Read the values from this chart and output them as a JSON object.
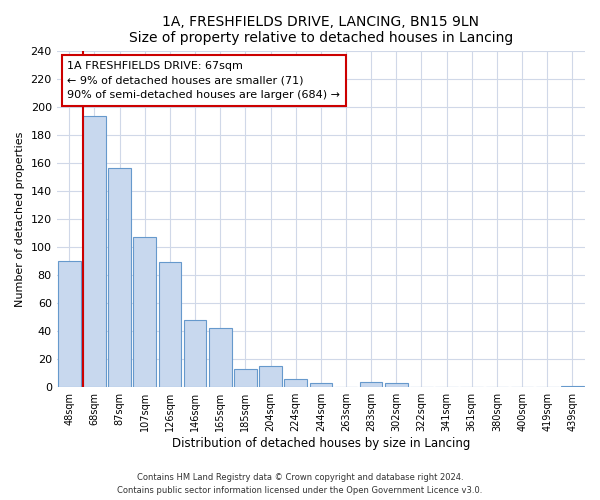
{
  "title": "1A, FRESHFIELDS DRIVE, LANCING, BN15 9LN",
  "subtitle": "Size of property relative to detached houses in Lancing",
  "xlabel": "Distribution of detached houses by size in Lancing",
  "ylabel": "Number of detached properties",
  "bar_color": "#c8d8ee",
  "bar_edge_color": "#6699cc",
  "categories": [
    "48sqm",
    "68sqm",
    "87sqm",
    "107sqm",
    "126sqm",
    "146sqm",
    "165sqm",
    "185sqm",
    "204sqm",
    "224sqm",
    "244sqm",
    "263sqm",
    "283sqm",
    "302sqm",
    "322sqm",
    "341sqm",
    "361sqm",
    "380sqm",
    "400sqm",
    "419sqm",
    "439sqm"
  ],
  "values": [
    90,
    193,
    156,
    107,
    89,
    48,
    42,
    13,
    15,
    6,
    3,
    0,
    4,
    3,
    0,
    0,
    0,
    0,
    0,
    0,
    1
  ],
  "marker_bar_index": 1,
  "marker_color": "#cc0000",
  "annotation_title": "1A FRESHFIELDS DRIVE: 67sqm",
  "annotation_line1": "← 9% of detached houses are smaller (71)",
  "annotation_line2": "90% of semi-detached houses are larger (684) →",
  "annotation_box_color": "#ffffff",
  "annotation_box_edge": "#cc0000",
  "ylim": [
    0,
    240
  ],
  "yticks": [
    0,
    20,
    40,
    60,
    80,
    100,
    120,
    140,
    160,
    180,
    200,
    220,
    240
  ],
  "bg_color": "#ffffff",
  "grid_color": "#d0d8e8",
  "footer1": "Contains HM Land Registry data © Crown copyright and database right 2024.",
  "footer2": "Contains public sector information licensed under the Open Government Licence v3.0."
}
